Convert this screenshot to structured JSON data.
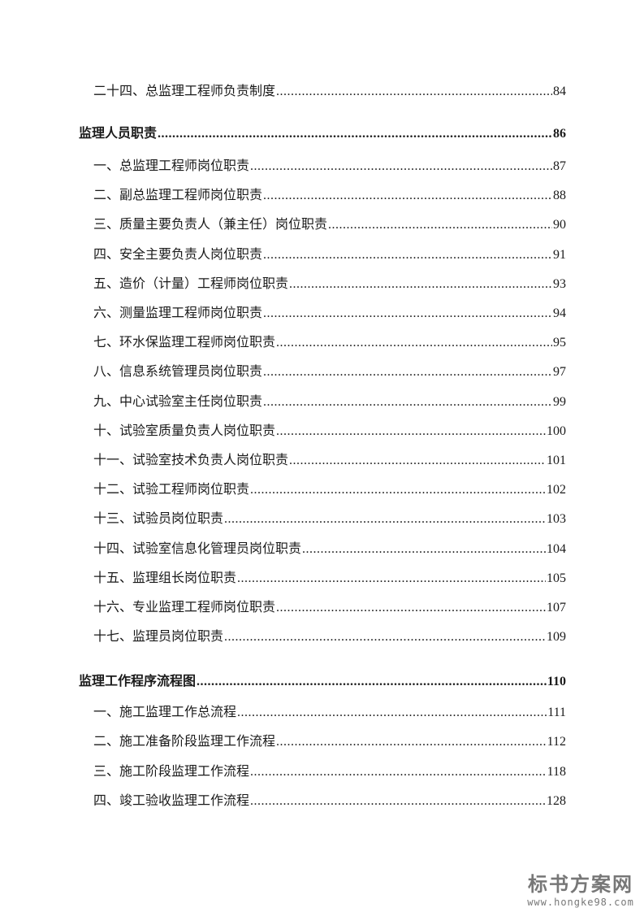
{
  "toc": [
    {
      "level": 2,
      "title": "二十四、总监理工程师负责制度",
      "page": "84"
    },
    {
      "level": 1,
      "title": "监理人员职责",
      "page": "86"
    },
    {
      "level": 2,
      "title": "一、总监理工程师岗位职责",
      "page": "87"
    },
    {
      "level": 2,
      "title": "二、副总监理工程师岗位职责",
      "page": "88"
    },
    {
      "level": 2,
      "title": "三、质量主要负责人（兼主任）岗位职责",
      "page": "90"
    },
    {
      "level": 2,
      "title": "四、安全主要负责人岗位职责",
      "page": "91"
    },
    {
      "level": 2,
      "title": "五、造价（计量）工程师岗位职责",
      "page": "93"
    },
    {
      "level": 2,
      "title": "六、测量监理工程师岗位职责",
      "page": "94"
    },
    {
      "level": 2,
      "title": "七、环水保监理工程师岗位职责",
      "page": "95"
    },
    {
      "level": 2,
      "title": "八、信息系统管理员岗位职责",
      "page": "97"
    },
    {
      "level": 2,
      "title": "九、中心试验室主任岗位职责",
      "page": "99"
    },
    {
      "level": 2,
      "title": "十、试验室质量负责人岗位职责",
      "page": "100"
    },
    {
      "level": 2,
      "title": "十一、试验室技术负责人岗位职责",
      "page": "101"
    },
    {
      "level": 2,
      "title": "十二、试验工程师岗位职责",
      "page": "102"
    },
    {
      "level": 2,
      "title": "十三、试验员岗位职责",
      "page": "103"
    },
    {
      "level": 2,
      "title": "十四、试验室信息化管理员岗位职责",
      "page": "104"
    },
    {
      "level": 2,
      "title": "十五、监理组长岗位职责",
      "page": "105"
    },
    {
      "level": 2,
      "title": "十六、专业监理工程师岗位职责",
      "page": "107"
    },
    {
      "level": 2,
      "title": "十七、监理员岗位职责",
      "page": "109"
    },
    {
      "level": 1,
      "title": "监理工作程序流程图",
      "page": "110"
    },
    {
      "level": 2,
      "title": "一、施工监理工作总流程",
      "page": "111"
    },
    {
      "level": 2,
      "title": "二、施工准备阶段监理工作流程",
      "page": "112"
    },
    {
      "level": 2,
      "title": "三、施工阶段监理工作流程",
      "page": "118"
    },
    {
      "level": 2,
      "title": "四、竣工验收监理工作流程",
      "page": "128"
    }
  ],
  "watermark": {
    "logo": "标书方案网",
    "url": "www.hongke98.com"
  }
}
